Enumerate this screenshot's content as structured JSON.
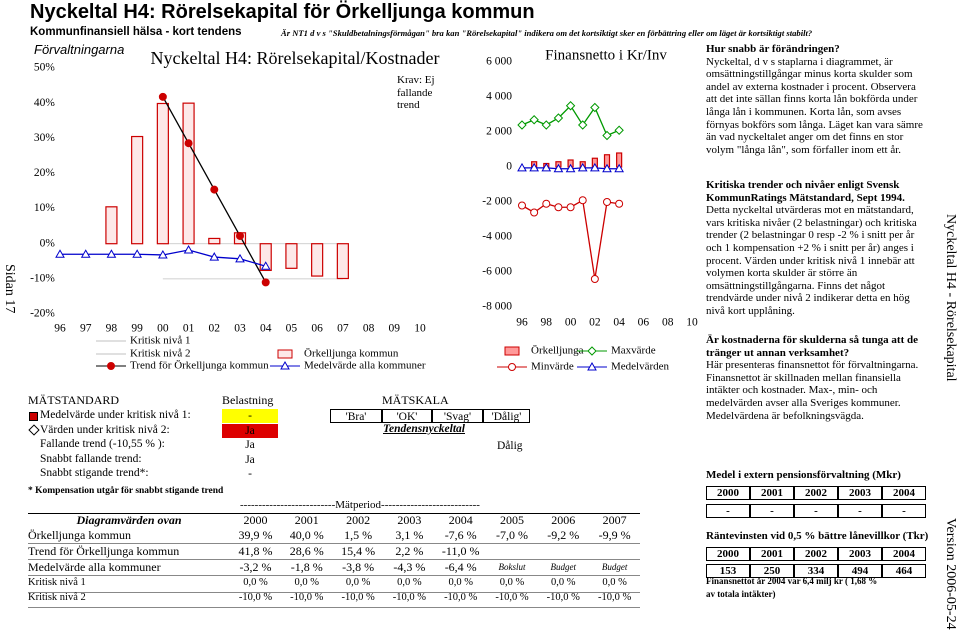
{
  "header": {
    "title": "Nyckeltal H4: Rörelsekapital för Örkelljunga kommun",
    "subtitle": "Kommunfinansiell hälsa - kort tendens",
    "question": "Är NT1 d v s \"Skuldbetalningsförmågan\" bra kan \"Rörelsekapital\" indikera om det kortsiktigt sker en förbättring eller om läget är kortsiktigt stabilt?"
  },
  "side": {
    "page": "Sidan 17",
    "name": "Nyckeltal H4 - Rörelsekapital",
    "version": "Version 2006-05-24"
  },
  "chart_data": [
    {
      "type": "bar",
      "label": "Förvaltningarna",
      "title": "Nyckeltal H4: Rörelsekapital/Kostnader",
      "annotation": "Krav: Ej fallande trend",
      "categories": [
        "96",
        "97",
        "98",
        "99",
        "00",
        "01",
        "02",
        "03",
        "04",
        "05",
        "06",
        "07",
        "08",
        "09",
        "10"
      ],
      "ylim": [
        -20,
        50
      ],
      "yticks": [
        {
          "value": -20,
          "label": "-20%"
        },
        {
          "value": -10,
          "label": "-10%"
        },
        {
          "value": 0,
          "label": "0%"
        },
        {
          "value": 10,
          "label": "10%"
        },
        {
          "value": 20,
          "label": "20%"
        },
        {
          "value": 30,
          "label": "30%"
        },
        {
          "value": 40,
          "label": "40%"
        },
        {
          "value": 50,
          "label": "50%"
        }
      ],
      "series": [
        {
          "name": "Kritisk nivå 1",
          "color": "#c0c0c0",
          "kind": "line",
          "marker": "none",
          "values": [
            null,
            null,
            null,
            null,
            0,
            0,
            0,
            0,
            0,
            0,
            0,
            0,
            null,
            null,
            null
          ]
        },
        {
          "name": "Kritisk nivå 2",
          "color": "#c0c0c0",
          "kind": "line",
          "marker": "none",
          "values": [
            null,
            null,
            null,
            null,
            -10,
            -10,
            -10,
            -10,
            -10,
            -10,
            -10,
            -10,
            null,
            null,
            null
          ]
        },
        {
          "name": "Örkelljunga kommun",
          "color": "#cc0000",
          "fill": "#fde8e8",
          "kind": "bar",
          "values": [
            null,
            null,
            10.5,
            30.5,
            39.9,
            40.0,
            1.5,
            3.1,
            -7.6,
            -7.0,
            -9.2,
            -9.9,
            null,
            null,
            null
          ]
        },
        {
          "name": "Trend för Örkelljunga kommun",
          "color": "#cc0000",
          "line_color": "#000000",
          "marker_fill": "#cc0000",
          "kind": "line",
          "marker": "circle",
          "values": [
            null,
            null,
            null,
            null,
            41.8,
            28.6,
            15.4,
            2.2,
            -11.0,
            null,
            null,
            null,
            null,
            null,
            null
          ]
        },
        {
          "name": "Medelvärde alla kommuner",
          "color": "#0000cc",
          "marker_fill": "#ffffff",
          "kind": "line",
          "marker": "triangle",
          "values": [
            -3,
            -3,
            -3,
            -3,
            -3.2,
            -1.8,
            -3.8,
            -4.3,
            -6.4,
            null,
            null,
            null,
            null,
            null,
            null
          ]
        }
      ]
    },
    {
      "type": "line",
      "title": "Finansnetto i Kr/Inv",
      "categories": [
        "96",
        null,
        "98",
        null,
        "00",
        null,
        "02",
        null,
        "04",
        null,
        "06",
        null,
        "08",
        null,
        "10"
      ],
      "ylim": [
        -8000,
        6000
      ],
      "yticks": [
        {
          "value": -8000,
          "label": "-8 000"
        },
        {
          "value": -6000,
          "label": "-6 000"
        },
        {
          "value": -4000,
          "label": "-4 000"
        },
        {
          "value": -2000,
          "label": "-2 000"
        },
        0,
        {
          "value": 2000,
          "label": "2 000"
        },
        {
          "value": 4000,
          "label": "4 000"
        },
        {
          "value": 6000,
          "label": "6 000"
        }
      ],
      "series": [
        {
          "name": "Örkelljunga",
          "color": "#cc0000",
          "fill": "#ff9999",
          "kind": "bar",
          "values": [
            null,
            300,
            200,
            300,
            400,
            300,
            500,
            700,
            800,
            null,
            null,
            null,
            null,
            null,
            null
          ]
        },
        {
          "name": "Maxvärde",
          "color": "#009900",
          "marker_fill": "#ffffff",
          "kind": "line",
          "marker": "diamond",
          "values": [
            2400,
            2700,
            2400,
            2800,
            3500,
            2400,
            3400,
            1800,
            2100,
            null,
            null,
            null,
            null,
            null,
            null
          ]
        },
        {
          "name": "Minvärde",
          "color": "#cc0000",
          "marker_fill": "#ffffff",
          "kind": "line",
          "marker": "circle",
          "values": [
            -2200,
            -2600,
            -2100,
            -2300,
            -2300,
            -1900,
            -6400,
            -2000,
            -2100,
            null,
            null,
            null,
            null,
            null,
            null
          ]
        },
        {
          "name": "Medelvärden",
          "color": "#0000cc",
          "marker_fill": "#ffffff",
          "kind": "line",
          "marker": "triangle",
          "values": [
            -50,
            -50,
            -50,
            -100,
            -100,
            -50,
            -50,
            -100,
            -100,
            null,
            null,
            null,
            null,
            null,
            null
          ]
        }
      ]
    }
  ],
  "text_blocks": [
    {
      "heading": "Hur snabb är förändringen?",
      "body": "Nyckeltal, d v s staplarna i diagrammet, är omsättningstillgångar minus korta skulder som andel av externa kostnader i procent. Observera att det inte sällan finns korta lån bokförda under långa lån i kommunen. Korta lån, som avses förnyas bokförs som långa. Läget kan vara sämre än vad nyckeltalet anger om det finns en stor volym \"långa lån\", som förfaller inom ett år."
    },
    {
      "heading": "Kritiska trender och nivåer enligt Svensk KommunRatings Mätstandard, Sept 1994.",
      "body": "Detta nyckeltal utvärderas mot en mätstandard, vars kritiska nivåer (2 belastningar) och kritiska trender (2 belastningar 0 resp -2 % i snitt per år och 1 kompensation +2 % i snitt per år) anges i procent. Värden under kritisk nivå 1 innebär att volymen korta skulder är större än omsättningstillgångarna.  Finns det något trendvärde under nivå 2 indikerar detta en hög nivå kort upplåning."
    },
    {
      "heading": "Är kostnaderna för skulderna så tunga att de tränger ut annan verksamhet?",
      "body": "Här presenteras finansnettot för förvaltningarna. Finansnettot är skillnaden mellan finansiella intäkter och kostnader. Max-, min- och medelvärden avser alla Sveriges kommuner. Medelvärdena är befolkningsvägda."
    }
  ],
  "pension_table": {
    "title": "Medel i extern pensionsförvaltning (Mkr)",
    "years": [
      "2000",
      "2001",
      "2002",
      "2003",
      "2004"
    ],
    "values": [
      "-",
      "-",
      "-",
      "-",
      "-"
    ]
  },
  "ranta_table": {
    "title": "Räntevinsten vid 0,5 % bättre lånevillkor (Tkr)",
    "years": [
      "2000",
      "2001",
      "2002",
      "2003",
      "2004"
    ],
    "values": [
      "153",
      "250",
      "334",
      "494",
      "464"
    ],
    "note": [
      "Finansnettot år 2004 var 6,4 milj kr ( 1,68 %",
      "av totala intäkter)"
    ]
  },
  "matstandard": {
    "title": "MÄTSTANDARD",
    "load_header": "Belastning",
    "scale_title": "MÄTSKALA",
    "rows": [
      [
        "Medelvärde under kritisk nivå 1:",
        "-"
      ],
      [
        "Värden under kritisk nivå 2:",
        "Ja"
      ],
      [
        "Fallande trend (-10,55 % ):",
        "Ja"
      ],
      [
        "Snabbt fallande trend:",
        "Ja"
      ],
      [
        "Snabbt stigande trend*:",
        "-"
      ]
    ],
    "scale": [
      "'Bra'",
      "'OK'",
      "'Svag'",
      "'Dålig'"
    ],
    "scale_label": "Tendensnyckeltal",
    "rating": "Dålig",
    "footnote": "* Kompensation utgår för snabbt stigande trend",
    "period": "--------------------------Mätperiod---------------------------"
  },
  "diagram_table": {
    "title": "Diagramvärden ovan",
    "years": [
      "2000",
      "2001",
      "2002",
      "2003",
      "2004",
      "2005",
      "2006",
      "2007"
    ],
    "rows": [
      {
        "label": "Örkelljunga kommun",
        "cells": [
          "39,9 %",
          "40,0 %",
          "1,5 %",
          "3,1 %",
          "-7,6 %",
          "-7,0 %",
          "-9,2 %",
          "-9,9 %"
        ]
      },
      {
        "label": "Trend för Örkelljunga kommun",
        "cells": [
          "41,8 %",
          "28,6 %",
          "15,4 %",
          "2,2 %",
          "-11,0 %"
        ]
      },
      {
        "label": "Medelvärde alla kommuner",
        "cells": [
          "-3,2 %",
          "-1,8 %",
          "-3,8 %",
          "-4,3 %",
          "-6,4 %",
          "Bokslut",
          "Budget",
          "Budget"
        ]
      },
      {
        "label": "Kritisk nivå 1",
        "cells": [
          "0,0 %",
          "0,0 %",
          "0,0 %",
          "0,0 %",
          "0,0 %",
          "0,0 %",
          "0,0 %",
          "0,0 %"
        ]
      },
      {
        "label": "Kritisk nivå 2",
        "cells": [
          "-10,0 %",
          "-10,0 %",
          "-10,0 %",
          "-10,0 %",
          "-10,0 %",
          "-10,0 %",
          "-10,0 %",
          "-10,0 %"
        ]
      }
    ]
  }
}
